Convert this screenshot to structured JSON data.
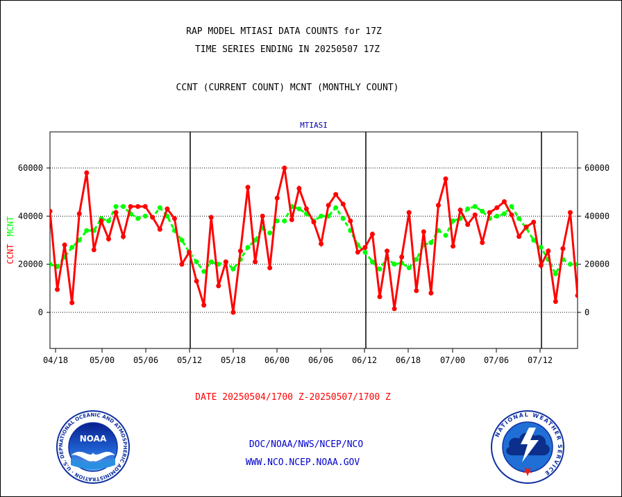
{
  "title_line1": "RAP MODEL MTIASI DATA COUNTS for 17Z",
  "title_line2": "TIME SERIES ENDING IN 20250507 17Z",
  "subtitle": "CCNT (CURRENT COUNT) MCNT (MONTHLY COUNT)",
  "date_range": "DATE 20250504/1700 Z-20250507/1700 Z",
  "footer": {
    "line1": "DOC/NOAA/NWS/NCEP/NCO",
    "line2": "WWW.NCO.NCEP.NOAA.GOV"
  },
  "logos": {
    "noaa_label": "NOAA",
    "noaa_ring_text": "NATIONAL OCEANIC AND ATMOSPHERIC ADMINISTRATION · U.S. DEPARTMENT OF COMMERCE",
    "nws_ring_text": "NATIONAL WEATHER SERVICE"
  },
  "colors": {
    "ccnt": "#ff0000",
    "mcnt": "#00ff00",
    "title": "#0000aa",
    "date": "#ff0000",
    "footer": "#0000cc"
  },
  "chart_data": {
    "type": "line",
    "title": "MTIASI",
    "ylabel_left_ccnt": "CCNT",
    "ylabel_left_mcnt": "MCNT",
    "ylim": [
      -15000,
      75000
    ],
    "yticks": [
      0,
      20000,
      40000,
      60000
    ],
    "ytick_labels": [
      "0",
      "20000",
      "40000",
      "60000"
    ],
    "xtick_labels": [
      "04/18",
      "05/00",
      "05/06",
      "05/12",
      "05/18",
      "06/00",
      "06/06",
      "06/12",
      "06/18",
      "07/00",
      "07/06",
      "07/12"
    ],
    "grid": true,
    "series": [
      {
        "name": "CCNT",
        "color": "#ff0000",
        "values": [
          42000,
          9500,
          28000,
          4000,
          41000,
          58000,
          26000,
          38000,
          30500,
          41500,
          31500,
          44000,
          44000,
          44000,
          39500,
          34500,
          43000,
          39000,
          20000,
          25000,
          13000,
          3000,
          39500,
          11000,
          21000,
          0,
          25500,
          52000,
          21000,
          40000,
          18500,
          47500,
          60000,
          38500,
          51500,
          43000,
          37500,
          28500,
          44500,
          49000,
          45000,
          38000,
          25000,
          27000,
          32500,
          6500,
          25500,
          1500,
          23000,
          41500,
          9000,
          33500,
          8000,
          44500,
          55500,
          27500,
          42500,
          36500,
          40500,
          29000,
          41500,
          43500,
          46000,
          40500,
          31500,
          35500,
          37500,
          19500,
          25500,
          4500,
          26500,
          41500,
          7000
        ]
      },
      {
        "name": "MCNT",
        "color": "#00ff00",
        "values": [
          20000,
          19000,
          23000,
          27000,
          30000,
          34000,
          34000,
          39000,
          38000,
          44000,
          44000,
          41000,
          39000,
          40000,
          39500,
          43500,
          40000,
          34000,
          30000,
          25000,
          21000,
          17000,
          21000,
          20000,
          21000,
          18000,
          22000,
          27000,
          30000,
          35000,
          33000,
          38000,
          38000,
          44000,
          43000,
          41000,
          38000,
          40000,
          40000,
          43500,
          39000,
          34000,
          28000,
          25000,
          21000,
          18000,
          22500,
          20000,
          20500,
          18500,
          22000,
          28000,
          29000,
          34000,
          32000,
          38000,
          39000,
          43000,
          44000,
          42000,
          39000,
          40000,
          41000,
          44000,
          39000,
          35000,
          30000,
          27000,
          22000,
          16000,
          22000,
          20000,
          20000
        ]
      }
    ]
  }
}
